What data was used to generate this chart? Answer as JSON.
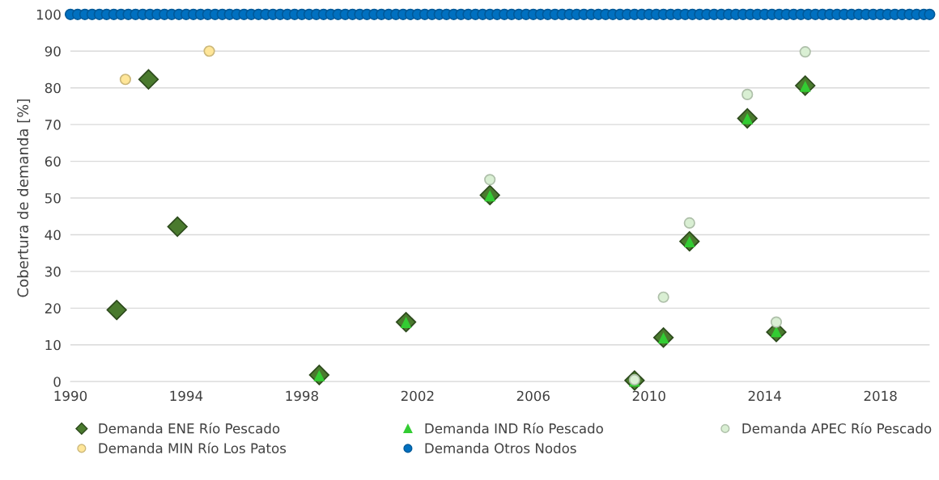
{
  "chart_data": {
    "type": "scatter",
    "ylabel": "Cobertura de demanda [%]",
    "xlim": [
      1990,
      2019.7
    ],
    "xticks": [
      1990,
      1994,
      1998,
      2002,
      2006,
      2010,
      2014,
      2018
    ],
    "ylim": [
      0,
      100
    ],
    "yticks": [
      0,
      10,
      20,
      30,
      40,
      50,
      60,
      70,
      80,
      90,
      100
    ],
    "grid": "y",
    "legend": "bottom",
    "series": [
      {
        "name": "Demanda ENE Río Pescado",
        "color": "#4a7a2e",
        "marker": "diamond",
        "x": [
          1991.6,
          1992.7,
          1993.7,
          1998.6,
          2001.6,
          2004.5,
          2009.5,
          2010.5,
          2011.4,
          2013.4,
          2014.4,
          2015.4
        ],
        "values": [
          19.5,
          82.3,
          42.2,
          1.8,
          16.2,
          50.8,
          0.3,
          12,
          38.2,
          71.7,
          13.5,
          80.6
        ]
      },
      {
        "name": "Demanda IND Río Pescado",
        "color": "#33cc33",
        "marker": "triangle",
        "x": [
          1998.6,
          2001.6,
          2004.5,
          2009.5,
          2010.5,
          2011.4,
          2013.4,
          2014.4,
          2015.4
        ],
        "values": [
          1.5,
          16,
          50.5,
          0,
          11.8,
          38,
          71.5,
          13.5,
          80.3
        ]
      },
      {
        "name": "Demanda APEC Río Pescado",
        "color": "#d9efd3",
        "marker": "circle",
        "x": [
          2004.5,
          2009.5,
          2010.5,
          2011.4,
          2013.4,
          2014.4,
          2015.4
        ],
        "values": [
          55,
          0.5,
          23,
          43.2,
          78.2,
          16.2,
          89.8
        ]
      },
      {
        "name": "Demanda MIN Río Los Patos",
        "color": "#ffe699",
        "marker": "circle",
        "x": [
          1991.9,
          1994.8
        ],
        "values": [
          82.3,
          90
        ]
      },
      {
        "name": "Demanda Otros Nodos",
        "color": "#0070c0",
        "marker": "circle",
        "x": [
          1990,
          1990.25,
          1990.5,
          1990.75,
          1991,
          1991.25,
          1991.5,
          1991.75,
          1992,
          1992.25,
          1992.5,
          1992.75,
          1993,
          1993.25,
          1993.5,
          1993.75,
          1994,
          1994.25,
          1994.5,
          1994.75,
          1995,
          1995.25,
          1995.5,
          1995.75,
          1996,
          1996.25,
          1996.5,
          1996.75,
          1997,
          1997.25,
          1997.5,
          1997.75,
          1998,
          1998.25,
          1998.5,
          1998.75,
          1999,
          1999.25,
          1999.5,
          1999.75,
          2000,
          2000.25,
          2000.5,
          2000.75,
          2001,
          2001.25,
          2001.5,
          2001.75,
          2002,
          2002.25,
          2002.5,
          2002.75,
          2003,
          2003.25,
          2003.5,
          2003.75,
          2004,
          2004.25,
          2004.5,
          2004.75,
          2005,
          2005.25,
          2005.5,
          2005.75,
          2006,
          2006.25,
          2006.5,
          2006.75,
          2007,
          2007.25,
          2007.5,
          2007.75,
          2008,
          2008.25,
          2008.5,
          2008.75,
          2009,
          2009.25,
          2009.5,
          2009.75,
          2010,
          2010.25,
          2010.5,
          2010.75,
          2011,
          2011.25,
          2011.5,
          2011.75,
          2012,
          2012.25,
          2012.5,
          2012.75,
          2013,
          2013.25,
          2013.5,
          2013.75,
          2014,
          2014.25,
          2014.5,
          2014.75,
          2015,
          2015.25,
          2015.5,
          2015.75,
          2016,
          2016.25,
          2016.5,
          2016.75,
          2017,
          2017.25,
          2017.5,
          2017.75,
          2018,
          2018.25,
          2018.5,
          2018.75,
          2019,
          2019.25,
          2019.5,
          2019.7
        ],
        "values": [
          100,
          100,
          100,
          100,
          100,
          100,
          100,
          100,
          100,
          100,
          100,
          100,
          100,
          100,
          100,
          100,
          100,
          100,
          100,
          100,
          100,
          100,
          100,
          100,
          100,
          100,
          100,
          100,
          100,
          100,
          100,
          100,
          100,
          100,
          100,
          100,
          100,
          100,
          100,
          100,
          100,
          100,
          100,
          100,
          100,
          100,
          100,
          100,
          100,
          100,
          100,
          100,
          100,
          100,
          100,
          100,
          100,
          100,
          100,
          100,
          100,
          100,
          100,
          100,
          100,
          100,
          100,
          100,
          100,
          100,
          100,
          100,
          100,
          100,
          100,
          100,
          100,
          100,
          100,
          100,
          100,
          100,
          100,
          100,
          100,
          100,
          100,
          100,
          100,
          100,
          100,
          100,
          100,
          100,
          100,
          100,
          100,
          100,
          100,
          100,
          100,
          100,
          100,
          100,
          100,
          100,
          100,
          100,
          100,
          100,
          100,
          100,
          100,
          100,
          100,
          100,
          100,
          100,
          100,
          100
        ]
      }
    ]
  }
}
